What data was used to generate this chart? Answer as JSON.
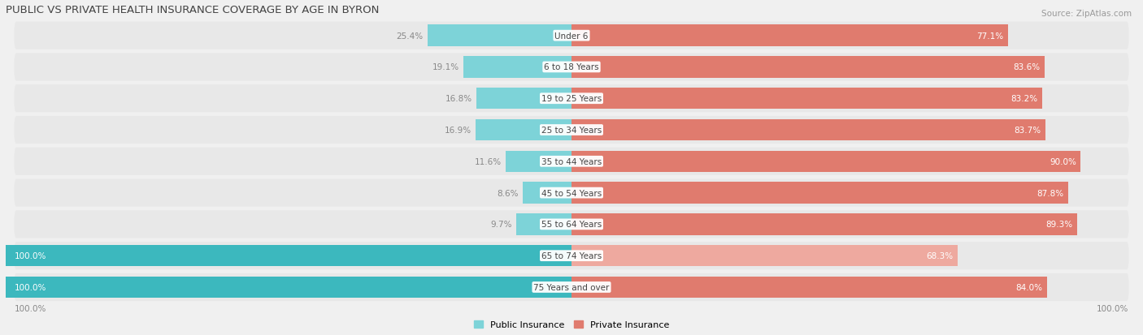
{
  "title": "PUBLIC VS PRIVATE HEALTH INSURANCE COVERAGE BY AGE IN BYRON",
  "source": "Source: ZipAtlas.com",
  "categories": [
    "Under 6",
    "6 to 18 Years",
    "19 to 25 Years",
    "25 to 34 Years",
    "35 to 44 Years",
    "45 to 54 Years",
    "55 to 64 Years",
    "65 to 74 Years",
    "75 Years and over"
  ],
  "public_values": [
    25.4,
    19.1,
    16.8,
    16.9,
    11.6,
    8.6,
    9.7,
    100.0,
    100.0
  ],
  "private_values": [
    77.1,
    83.6,
    83.2,
    83.7,
    90.0,
    87.8,
    89.3,
    68.3,
    84.0
  ],
  "public_color_full": "#3cb8be",
  "public_color_partial": "#7dd3d8",
  "private_color_full": "#e07b6e",
  "private_color_light": "#eea99f",
  "row_bg_color": "#e8e8e8",
  "fig_bg_color": "#f0f0f0",
  "label_color_outside": "#888888",
  "label_color_inside": "#ffffff",
  "title_color": "#444444",
  "source_color": "#999999",
  "legend_public": "Public Insurance",
  "legend_private": "Private Insurance",
  "max_value": 100.0,
  "axis_label_left": "100.0%",
  "axis_label_right": "100.0%"
}
